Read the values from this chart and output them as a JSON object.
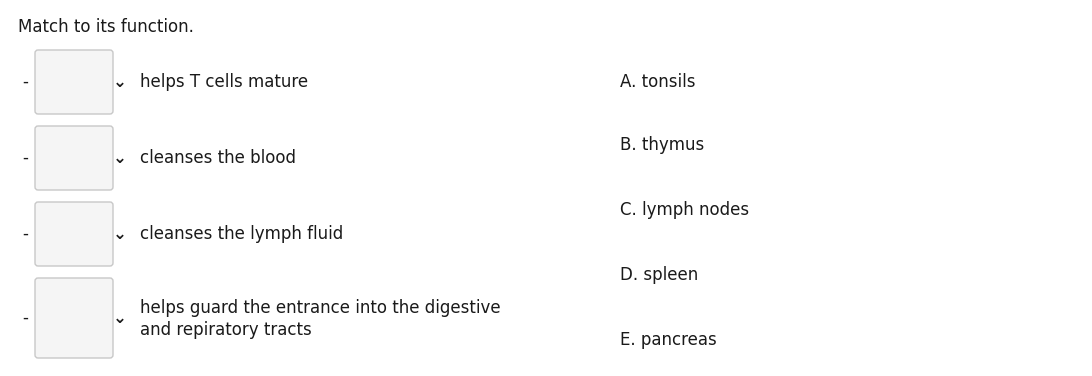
{
  "title": "Match to its function.",
  "title_fontsize": 12,
  "background_color": "#ffffff",
  "font_color": "#1a1a1a",
  "left_items": [
    "helps T cells mature",
    "cleanses the blood",
    "cleanses the lymph fluid",
    "helps guard the entrance into the digestive\nand repiratory tracts"
  ],
  "right_items": [
    "A. tonsils",
    "B. thymus",
    "C. lymph nodes",
    "D. spleen",
    "E. pancreas"
  ],
  "font_size": 12,
  "font_family": "DejaVu Sans",
  "fig_width": 10.92,
  "fig_height": 3.76,
  "dpi": 100
}
